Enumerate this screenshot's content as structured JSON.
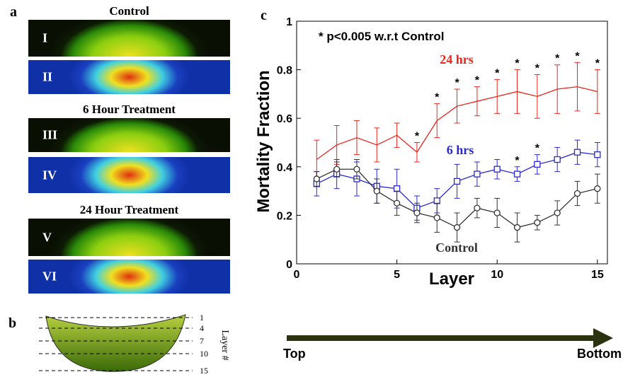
{
  "panel_a": {
    "label": "a",
    "groups": [
      {
        "title": "Control",
        "images": [
          "I",
          "II"
        ]
      },
      {
        "title": "6 Hour Treatment",
        "images": [
          "III",
          "IV"
        ]
      },
      {
        "title": "24 Hour Treatment",
        "images": [
          "V",
          "VI"
        ]
      }
    ]
  },
  "panel_b": {
    "label": "b",
    "layers": [
      "1",
      "4",
      "7",
      "10",
      "15"
    ],
    "axis_label": "Layer #"
  },
  "arrow": {
    "start": "Top",
    "end": "Bottom"
  },
  "chart_data": {
    "type": "line",
    "panel_label": "c",
    "annotation": "* p<0.005 w.r.t Control",
    "xlabel": "Layer",
    "ylabel": "Mortality Fraction",
    "x": [
      1,
      2,
      3,
      4,
      5,
      6,
      7,
      8,
      9,
      10,
      11,
      12,
      13,
      14,
      15
    ],
    "xlim": [
      0,
      15.5
    ],
    "ylim": [
      0,
      1
    ],
    "xticks": [
      0,
      5,
      10,
      15
    ],
    "yticks": [
      0,
      0.2,
      0.4,
      0.6,
      0.8,
      1
    ],
    "significance_marker": "*",
    "series": [
      {
        "name": "24 hrs",
        "color": "#e8261e",
        "marker": "none",
        "values": [
          0.43,
          0.49,
          0.52,
          0.49,
          0.53,
          0.46,
          0.59,
          0.65,
          0.67,
          0.69,
          0.71,
          0.69,
          0.72,
          0.73,
          0.71
        ],
        "errors": [
          0.08,
          0.08,
          0.07,
          0.07,
          0.05,
          0.04,
          0.07,
          0.07,
          0.06,
          0.07,
          0.09,
          0.09,
          0.1,
          0.1,
          0.09
        ],
        "significant_layers": [
          6,
          7,
          8,
          9,
          10,
          11,
          12,
          13,
          14,
          15
        ]
      },
      {
        "name": "6 hrs",
        "color": "#2a2ad0",
        "marker": "square",
        "values": [
          0.33,
          0.37,
          0.35,
          0.32,
          0.31,
          0.23,
          0.26,
          0.34,
          0.37,
          0.39,
          0.37,
          0.41,
          0.43,
          0.46,
          0.45
        ],
        "errors": [
          0.05,
          0.06,
          0.07,
          0.07,
          0.08,
          0.05,
          0.05,
          0.07,
          0.05,
          0.04,
          0.03,
          0.04,
          0.05,
          0.05,
          0.05
        ],
        "significant_layers": [
          11,
          12
        ]
      },
      {
        "name": "Control",
        "color": "#333333",
        "marker": "circle",
        "values": [
          0.35,
          0.39,
          0.39,
          0.3,
          0.25,
          0.21,
          0.19,
          0.15,
          0.23,
          0.21,
          0.15,
          0.17,
          0.21,
          0.29,
          0.31
        ],
        "errors": [
          0.03,
          0.03,
          0.04,
          0.05,
          0.05,
          0.04,
          0.06,
          0.06,
          0.04,
          0.06,
          0.06,
          0.03,
          0.05,
          0.05,
          0.06
        ],
        "significant_layers": []
      }
    ]
  }
}
